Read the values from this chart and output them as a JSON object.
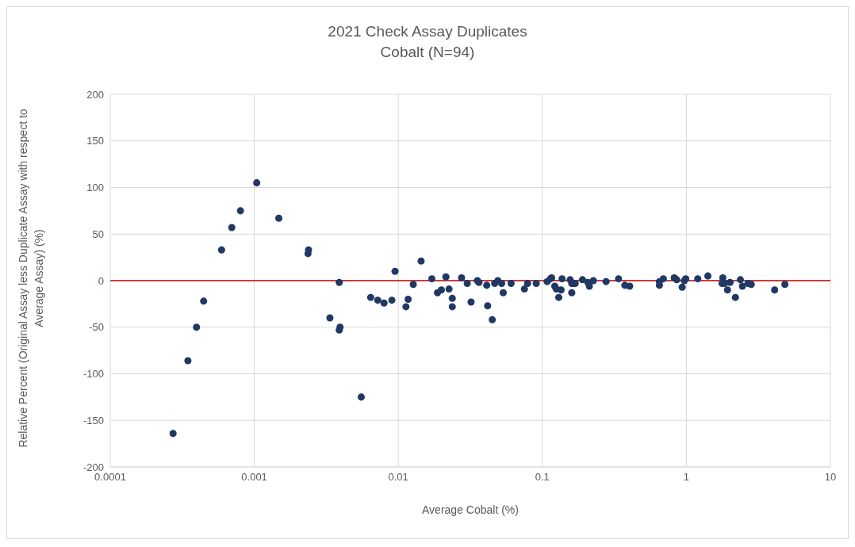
{
  "chart_data": {
    "type": "scatter",
    "title": "2021 Check Assay Duplicates",
    "subtitle": "Cobalt (N=94)",
    "xlabel": "Average Cobalt (%)",
    "ylabel": "Relative Percent (Original Assay less Duplicate Assay with respect to Average Assay) (%)",
    "log": "x",
    "grid": true,
    "marker": "circle",
    "xlim": [
      0.0001,
      10
    ],
    "xticks": [
      0.0001,
      0.001,
      0.01,
      0.1,
      1,
      10
    ],
    "ylim": [
      -200,
      200
    ],
    "yticks": [
      -200,
      -150,
      -100,
      -50,
      0,
      50,
      100,
      150,
      200
    ],
    "ref_lines": [
      {
        "axis": "y",
        "value": 0,
        "color": "#c00000"
      }
    ],
    "series": [
      {
        "color": "#203864",
        "x": [
          0.000273,
          0.000346,
          0.000397,
          0.000445,
          0.000593,
          0.000698,
          0.000802,
          0.00104,
          0.00148,
          0.00236,
          0.00238,
          0.00335,
          0.00389,
          0.00394,
          0.00389,
          0.00553,
          0.00643,
          0.0072,
          0.00796,
          0.00902,
          0.00949,
          0.0113,
          0.0117,
          0.0127,
          0.0144,
          0.0171,
          0.0187,
          0.0199,
          0.0214,
          0.0225,
          0.0237,
          0.0237,
          0.0275,
          0.0301,
          0.032,
          0.0354,
          0.0363,
          0.0411,
          0.0417,
          0.0449,
          0.0467,
          0.0491,
          0.0522,
          0.0535,
          0.0607,
          0.0751,
          0.079,
          0.0907,
          0.108,
          0.114,
          0.116,
          0.122,
          0.125,
          0.13,
          0.135,
          0.137,
          0.156,
          0.16,
          0.16,
          0.163,
          0.169,
          0.19,
          0.207,
          0.212,
          0.226,
          0.277,
          0.338,
          0.374,
          0.404,
          0.65,
          0.65,
          0.692,
          0.824,
          0.857,
          0.935,
          0.968,
          0.99,
          1.2,
          1.41,
          1.79,
          1.77,
          1.84,
          2.01,
          1.93,
          2.19,
          2.37,
          2.45,
          2.68,
          2.82,
          4.1,
          4.83
        ],
        "values": [
          -164,
          -86,
          -50,
          -22,
          33,
          57,
          75,
          105,
          67,
          29,
          33,
          -40,
          -2,
          -50,
          -53,
          -125,
          -18,
          -21,
          -24,
          -21,
          10,
          -28,
          -20,
          -4,
          21,
          2,
          -13,
          -10,
          4,
          -9,
          -19,
          -28,
          3,
          -3,
          -23,
          0,
          -2,
          -5,
          -27,
          -42,
          -3,
          0,
          -3,
          -13,
          -3,
          -9,
          -3,
          -3,
          -1,
          2,
          3,
          -6,
          -9,
          -18,
          -10,
          2,
          1,
          -3,
          -13,
          -3,
          -3,
          1,
          -2,
          -6,
          0,
          -1,
          2,
          -5,
          -6,
          -1,
          -5,
          2,
          3,
          1,
          -7,
          0,
          2,
          2,
          5,
          3,
          -3,
          -3,
          -2,
          -10,
          -18,
          1,
          -6,
          -3,
          -4,
          -10,
          -4
        ]
      }
    ]
  }
}
